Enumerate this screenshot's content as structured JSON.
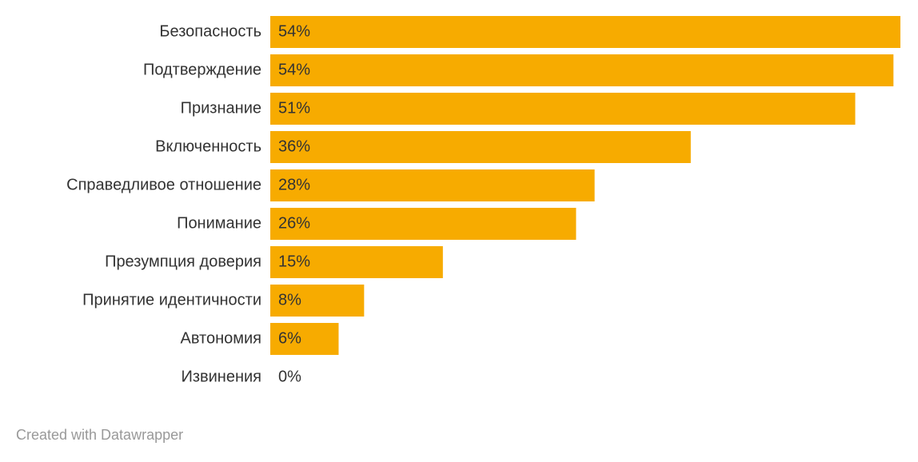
{
  "chart_data": {
    "type": "bar",
    "orientation": "horizontal",
    "categories": [
      "Безопасность",
      "Подтверждение",
      "Признание",
      "Включенность",
      "Справедливое отношение",
      "Понимание",
      "Презумпция доверия",
      "Принятие идентичности",
      "Автономия",
      "Извинения"
    ],
    "values": [
      54.4,
      53.8,
      50.5,
      36.3,
      28.0,
      26.4,
      14.9,
      8.1,
      5.9,
      0
    ],
    "value_labels": [
      "54%",
      "54%",
      "51%",
      "36%",
      "28%",
      "26%",
      "15%",
      "8%",
      "6%",
      "0%"
    ],
    "color": "#f7ab00"
  },
  "footer": "Created with Datawrapper"
}
